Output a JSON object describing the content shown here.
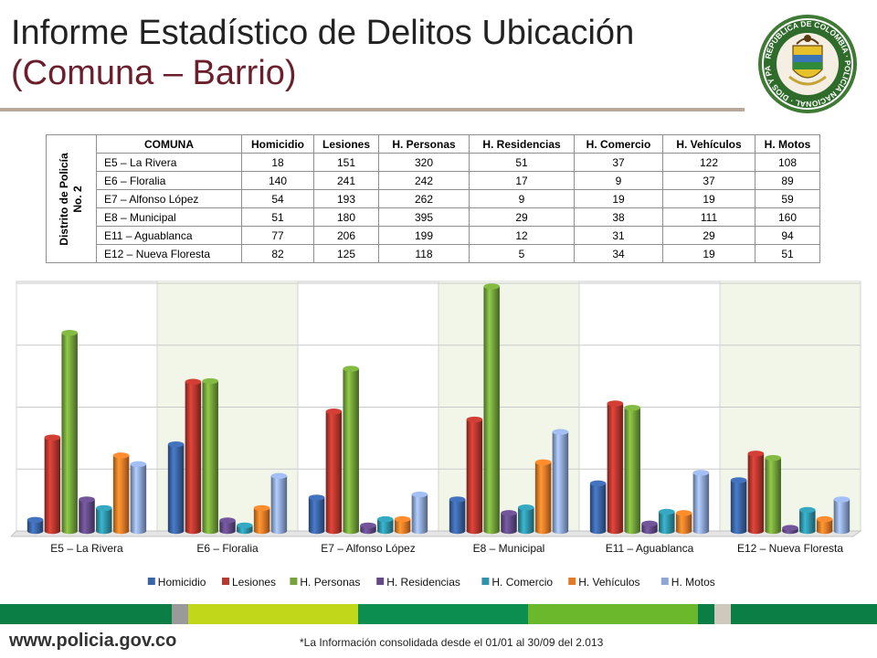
{
  "header": {
    "title_line1": "Informe Estadístico de Delitos Ubicación",
    "title_line2": "(Comuna – Barrio)",
    "seal_text": "REPÚBLICA DE COLOMBIA · POLICÍA NACIONAL · DIOS Y PATRIA"
  },
  "table": {
    "side_label_line1": "Distrito de Policía",
    "side_label_line2": "No. 2",
    "columns": [
      "COMUNA",
      "Homicidio",
      "Lesiones",
      "H. Personas",
      "H. Residencias",
      "H. Comercio",
      "H. Vehículos",
      "H. Motos"
    ],
    "rows": [
      [
        "E5 – La Rivera",
        "18",
        "151",
        "320",
        "51",
        "37",
        "122",
        "108"
      ],
      [
        "E6 – Floralia",
        "140",
        "241",
        "242",
        "17",
        "9",
        "37",
        "89"
      ],
      [
        "E7 – Alfonso López",
        "54",
        "193",
        "262",
        "9",
        "19",
        "19",
        "59"
      ],
      [
        "E8 – Municipal",
        "51",
        "180",
        "395",
        "29",
        "38",
        "111",
        "160"
      ],
      [
        "E11 – Aguablanca",
        "77",
        "206",
        "199",
        "12",
        "31",
        "29",
        "94"
      ],
      [
        "E12 – Nueva Floresta",
        "82",
        "125",
        "118",
        "5",
        "34",
        "19",
        "51"
      ]
    ]
  },
  "chart_data": {
    "type": "bar",
    "categories": [
      "E5 – La Rivera",
      "E6 – Floralia",
      "E7 – Alfonso López",
      "E8 – Municipal",
      "E11 – Aguablanca",
      "E12 – Nueva Floresta"
    ],
    "series": [
      {
        "name": "Homicidio",
        "values": [
          18,
          140,
          54,
          51,
          77,
          82
        ]
      },
      {
        "name": "Lesiones",
        "values": [
          151,
          241,
          193,
          180,
          206,
          125
        ]
      },
      {
        "name": "H. Personas",
        "values": [
          320,
          242,
          262,
          395,
          199,
          118
        ]
      },
      {
        "name": "H. Residencias",
        "values": [
          51,
          17,
          9,
          29,
          12,
          5
        ]
      },
      {
        "name": "H. Comercio",
        "values": [
          37,
          9,
          19,
          38,
          31,
          34
        ]
      },
      {
        "name": "H. Vehículos",
        "values": [
          122,
          37,
          19,
          111,
          29,
          19
        ]
      },
      {
        "name": "H. Motos",
        "values": [
          108,
          89,
          59,
          160,
          94,
          51
        ]
      }
    ],
    "colors": [
      "#3a64a5",
      "#b8372e",
      "#73a33a",
      "#634a87",
      "#2e93a8",
      "#e27b28",
      "#8ea6d6"
    ],
    "ylim": [
      0,
      400
    ],
    "gridlines": true,
    "legend_position": "bottom"
  },
  "footer": {
    "url": "www.policia.gov.co",
    "note": "*La Información consolidada desde el 01/01 al 30/09 del 2.013",
    "bar_colors": [
      "#0b7e45",
      "#9a9a9a",
      "#c0d71a",
      "#0b8e50",
      "#6cb82c",
      "#0b7e45",
      "#cfc8bc",
      "#0b7e45"
    ]
  }
}
